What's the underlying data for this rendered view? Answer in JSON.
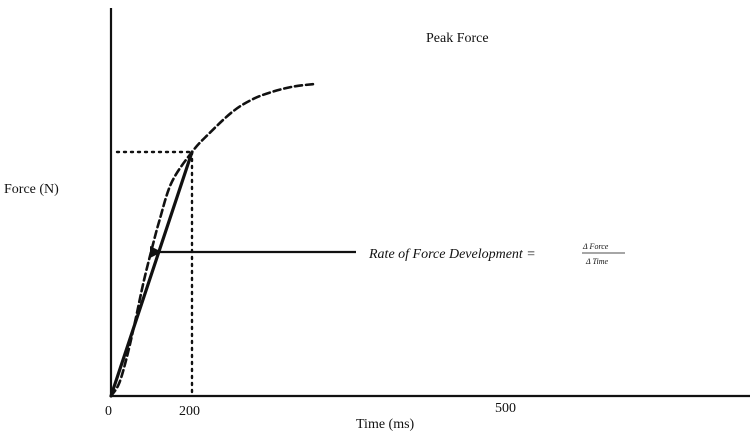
{
  "chart_data": {
    "type": "line",
    "xlabel": "Time (ms)",
    "ylabel": "Force (N)",
    "x_ticks": [
      "0",
      "200",
      "500"
    ],
    "series": [
      {
        "style": "dashed",
        "x": [
          0,
          20,
          40,
          60,
          80,
          100,
          120,
          150,
          200,
          240,
          300,
          350,
          400,
          450,
          500
        ],
        "y": [
          0,
          0.05,
          0.16,
          0.3,
          0.45,
          0.58,
          0.7,
          0.85,
          0.97,
          1.04,
          1.13,
          1.18,
          1.21,
          1.23,
          1.24
        ]
      }
    ],
    "peak_force_label": "Peak Force",
    "rfd_label": "Rate of Force Development =",
    "rfd_numerator": "Δ Force",
    "rfd_denominator": "Δ Time",
    "marked_point": {
      "x": 200,
      "y": 0.97
    }
  }
}
